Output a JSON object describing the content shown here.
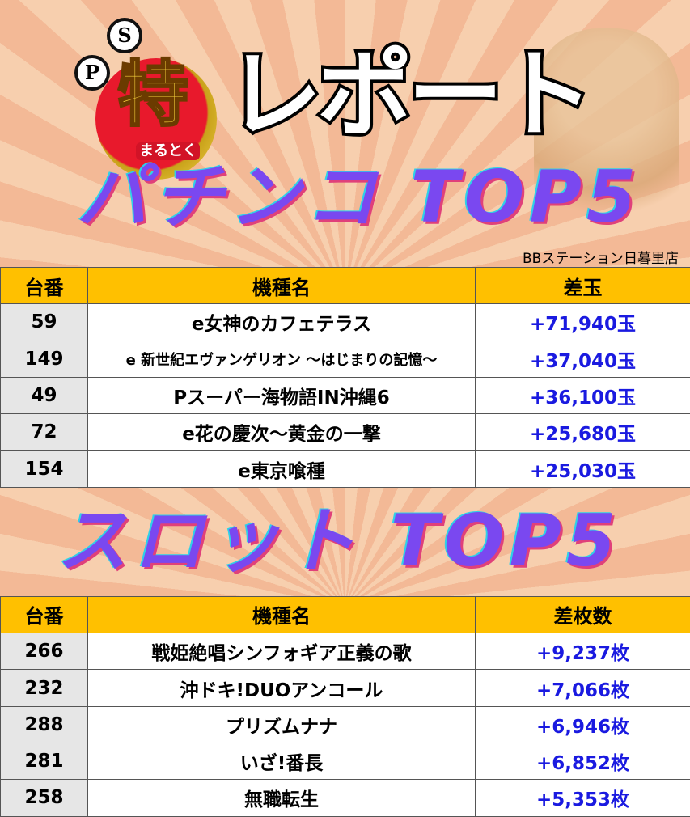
{
  "header": {
    "logo_p": "P",
    "logo_s": "S",
    "logo_main": "特",
    "logo_sub": "まるとく",
    "title": "レポート"
  },
  "pachinko": {
    "section_title": "パチンコ TOP5",
    "store": "BBステーション日暮里店",
    "columns": [
      "台番",
      "機種名",
      "差玉"
    ],
    "rows": [
      {
        "no": "59",
        "name": "e女神のカフェテラス",
        "diff": "+71,940玉"
      },
      {
        "no": "149",
        "name": "e 新世紀エヴァンゲリオン ～はじまりの記憶～",
        "diff": "+37,040玉"
      },
      {
        "no": "49",
        "name": "Pスーパー海物語IN沖縄6",
        "diff": "+36,100玉"
      },
      {
        "no": "72",
        "name": "e花の慶次～黄金の一撃",
        "diff": "+25,680玉"
      },
      {
        "no": "154",
        "name": "e東京喰種",
        "diff": "+25,030玉"
      }
    ]
  },
  "slot": {
    "section_title": "スロット TOP5",
    "columns": [
      "台番",
      "機種名",
      "差枚数"
    ],
    "rows": [
      {
        "no": "266",
        "name": "戦姫絶唱シンフォギア正義の歌",
        "diff": "+9,237枚"
      },
      {
        "no": "232",
        "name": "沖ドキ!DUOアンコール",
        "diff": "+7,066枚"
      },
      {
        "no": "288",
        "name": "プリズムナナ",
        "diff": "+6,946枚"
      },
      {
        "no": "281",
        "name": "いざ!番長",
        "diff": "+6,852枚"
      },
      {
        "no": "258",
        "name": "無職転生",
        "diff": "+5,353枚"
      }
    ]
  },
  "colors": {
    "header_bg": "#ffc000",
    "value_text": "#1a1ae0",
    "section_title": "#7a48f0"
  }
}
